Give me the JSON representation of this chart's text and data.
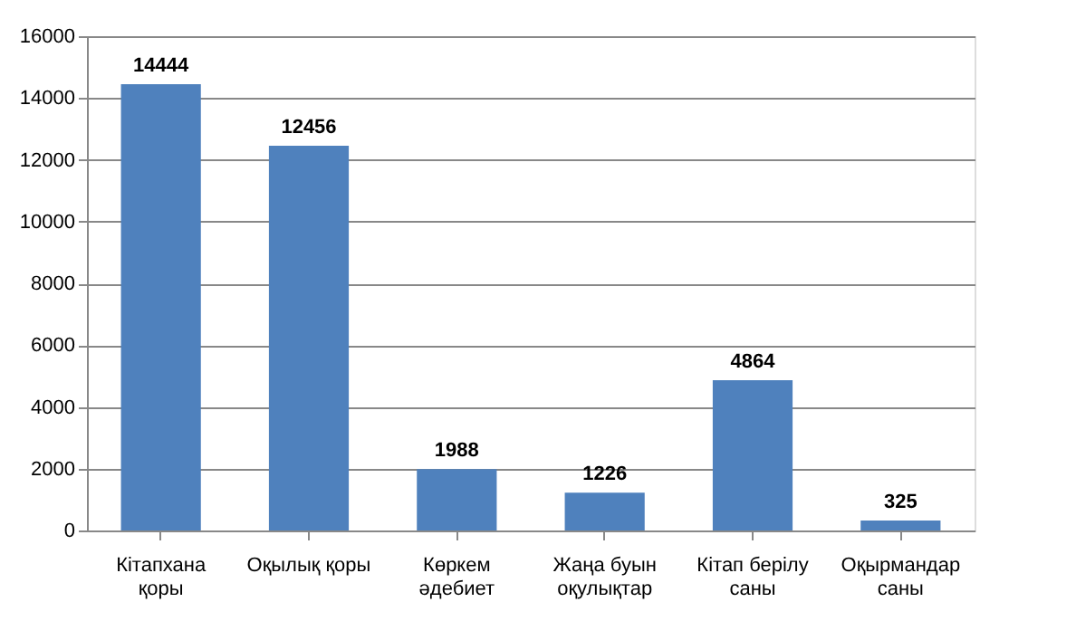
{
  "chart_data": {
    "type": "bar",
    "categories": [
      "Кітапхана\nқоры",
      "Оқылық қоры",
      "Көркем\nәдебиет",
      "Жаңа буын\nоқулықтар",
      "Кітап берілу\nсаны",
      "Оқырмандар\nсаны"
    ],
    "values": [
      14444,
      12456,
      1988,
      1226,
      4864,
      325
    ],
    "color": "#4f81bd",
    "ylim": [
      0,
      16000
    ],
    "yticks": [
      0,
      2000,
      4000,
      6000,
      8000,
      10000,
      12000,
      14000,
      16000
    ],
    "grid": "y",
    "data_labels": true
  }
}
